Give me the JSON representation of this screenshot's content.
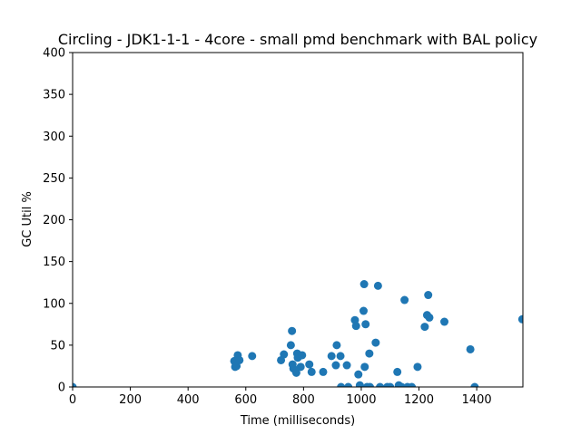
{
  "chart_data": {
    "type": "scatter",
    "title": "Circling - JDK1-1-1 - 4core -  small pmd benchmark with BAL policy",
    "xlabel": "Time (milliseconds)",
    "ylabel": "GC Util %",
    "xlim": [
      0,
      1560
    ],
    "ylim": [
      0,
      400
    ],
    "xticks": [
      0,
      200,
      400,
      600,
      800,
      1000,
      1200,
      1400
    ],
    "yticks": [
      0,
      50,
      100,
      150,
      200,
      250,
      300,
      350,
      400
    ],
    "grid": false,
    "marker_color": "#1f77b4",
    "series": [
      {
        "points": [
          [
            0,
            0
          ],
          [
            560,
            31
          ],
          [
            563,
            24
          ],
          [
            568,
            25
          ],
          [
            572,
            38
          ],
          [
            578,
            32
          ],
          [
            622,
            37
          ],
          [
            722,
            32
          ],
          [
            732,
            39
          ],
          [
            756,
            50
          ],
          [
            760,
            67
          ],
          [
            762,
            27
          ],
          [
            765,
            22
          ],
          [
            775,
            17
          ],
          [
            778,
            40
          ],
          [
            780,
            35
          ],
          [
            790,
            24
          ],
          [
            795,
            38
          ],
          [
            820,
            27
          ],
          [
            828,
            18
          ],
          [
            868,
            18
          ],
          [
            897,
            37
          ],
          [
            912,
            26
          ],
          [
            915,
            50
          ],
          [
            928,
            37
          ],
          [
            930,
            0
          ],
          [
            950,
            26
          ],
          [
            955,
            0
          ],
          [
            978,
            80
          ],
          [
            982,
            73
          ],
          [
            990,
            15
          ],
          [
            995,
            2
          ],
          [
            1008,
            91
          ],
          [
            1010,
            123
          ],
          [
            1012,
            24
          ],
          [
            1015,
            75
          ],
          [
            1020,
            0
          ],
          [
            1028,
            40
          ],
          [
            1030,
            0
          ],
          [
            1050,
            53
          ],
          [
            1058,
            121
          ],
          [
            1065,
            0
          ],
          [
            1090,
            0
          ],
          [
            1100,
            0
          ],
          [
            1125,
            18
          ],
          [
            1130,
            2
          ],
          [
            1140,
            0
          ],
          [
            1150,
            104
          ],
          [
            1160,
            0
          ],
          [
            1175,
            0
          ],
          [
            1195,
            24
          ],
          [
            1220,
            72
          ],
          [
            1228,
            86
          ],
          [
            1232,
            110
          ],
          [
            1236,
            83
          ],
          [
            1288,
            78
          ],
          [
            1378,
            45
          ],
          [
            1393,
            0
          ],
          [
            1558,
            81
          ]
        ]
      }
    ]
  }
}
